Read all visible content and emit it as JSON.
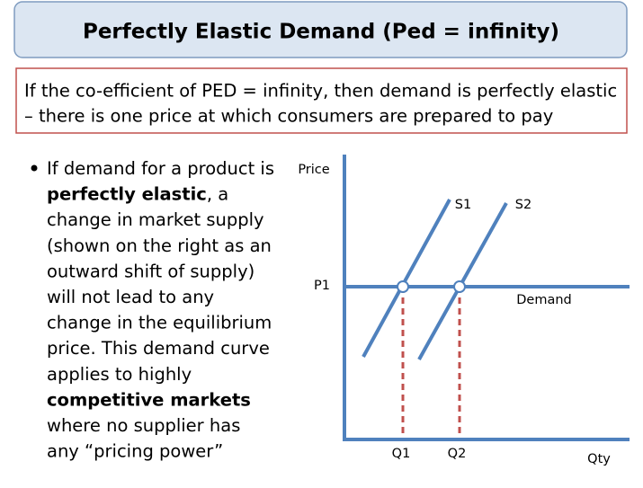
{
  "header": {
    "title": "Perfectly Elastic Demand (Ped = infinity)"
  },
  "definition": {
    "lines": [
      "If the co-efficient of PED = infinity, then demand is perfectly elastic",
      "– there is one price at which consumers are prepared to pay"
    ]
  },
  "bullet": {
    "lines": [
      [
        {
          "text": "If demand for a product is",
          "bold": false
        }
      ],
      [
        {
          "text": "perfectly elastic",
          "bold": true
        },
        {
          "text": ", a",
          "bold": false
        }
      ],
      [
        {
          "text": "change in market supply",
          "bold": false
        }
      ],
      [
        {
          "text": "(shown on the right as an",
          "bold": false
        }
      ],
      [
        {
          "text": "outward shift of supply)",
          "bold": false
        }
      ],
      [
        {
          "text": "will not lead to any",
          "bold": false
        }
      ],
      [
        {
          "text": "change in the equilibrium",
          "bold": false
        }
      ],
      [
        {
          "text": "price. This demand curve",
          "bold": false
        }
      ],
      [
        {
          "text": "applies to highly",
          "bold": false
        }
      ],
      [
        {
          "text": "competitive markets",
          "bold": true
        }
      ],
      [
        {
          "text": "where no supplier has",
          "bold": false
        }
      ],
      [
        {
          "text": "any “pricing power”",
          "bold": false
        }
      ]
    ]
  },
  "diagram": {
    "y_axis_label": "Price",
    "x_axis_label": "Qty",
    "price_label": "P1",
    "supply_labels": [
      "S1",
      "S2"
    ],
    "demand_label": "Demand",
    "quantity_labels": [
      "Q1",
      "Q2"
    ]
  }
}
